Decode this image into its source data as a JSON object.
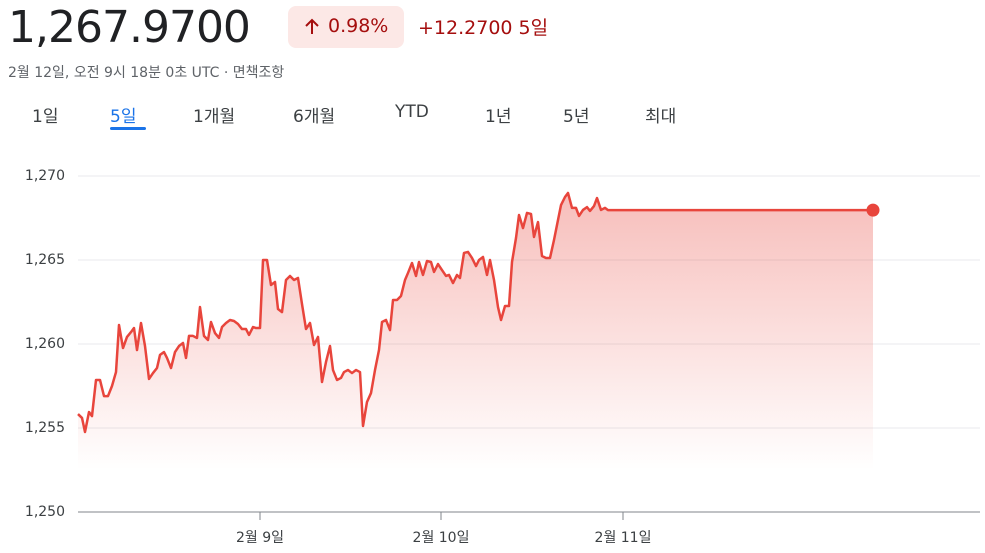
{
  "header": {
    "price": "1,267.9700",
    "change_percent": "0.98%",
    "change": "+12.2700",
    "period": "5일",
    "timestamp": "2월 12일, 오전 9시 18분 0초 UTC · ",
    "disclaimer": "면책조항"
  },
  "tabs": [
    "1일",
    "5일",
    "1개월",
    "6개월",
    "YTD",
    "1년",
    "5년",
    "최대"
  ],
  "chart_data": {
    "type": "line",
    "color": "#e8453c",
    "grid": true,
    "xlim": [
      0,
      902
    ],
    "xticks": [
      {
        "value": 182,
        "label": "2월 9일"
      },
      {
        "value": 363,
        "label": "2월 10일"
      },
      {
        "value": 545,
        "label": "2월 11일"
      }
    ],
    "ylim": [
      1250,
      1271.5
    ],
    "yticks": [
      {
        "value": 1250,
        "label": "1,250"
      },
      {
        "value": 1255,
        "label": "1,255"
      },
      {
        "value": 1260,
        "label": "1,260"
      },
      {
        "value": 1265,
        "label": "1,265"
      },
      {
        "value": 1270,
        "label": "1,270"
      }
    ],
    "x": [
      0,
      4,
      7,
      11,
      14,
      18,
      22,
      26,
      30,
      34,
      38,
      41,
      45,
      49,
      53,
      56,
      59,
      63,
      67,
      71,
      75,
      79,
      82,
      86,
      89,
      93,
      97,
      101,
      105,
      108,
      111,
      115,
      119,
      122,
      126,
      130,
      133,
      137,
      141,
      144,
      148,
      152,
      156,
      160,
      164,
      168,
      171,
      175,
      178,
      182,
      185,
      189,
      193,
      197,
      200,
      204,
      208,
      212,
      216,
      220,
      224,
      228,
      232,
      236,
      240,
      244,
      248,
      252,
      255,
      259,
      263,
      266,
      270,
      274,
      278,
      282,
      285,
      289,
      293,
      297,
      301,
      304,
      308,
      312,
      315,
      319,
      323,
      327,
      330,
      334,
      338,
      341,
      345,
      349,
      353,
      356,
      360,
      364,
      368,
      371,
      375,
      379,
      382,
      386,
      390,
      394,
      398,
      401,
      405,
      409,
      412,
      416,
      420,
      423,
      427,
      431,
      434,
      438,
      441,
      445,
      449,
      453,
      456,
      460,
      464,
      468,
      472,
      476,
      480,
      483,
      487,
      490,
      494,
      498,
      501,
      505,
      509,
      512,
      516,
      519,
      523,
      527,
      530,
      795
    ],
    "values": [
      1255.83,
      1255.6,
      1254.76,
      1255.95,
      1255.71,
      1257.86,
      1257.86,
      1256.9,
      1256.9,
      1257.5,
      1258.33,
      1261.13,
      1259.76,
      1260.42,
      1260.71,
      1260.95,
      1259.64,
      1261.25,
      1259.88,
      1257.92,
      1258.27,
      1258.57,
      1259.35,
      1259.52,
      1259.17,
      1258.57,
      1259.52,
      1259.88,
      1260.06,
      1259.17,
      1260.48,
      1260.48,
      1260.36,
      1262.2,
      1260.48,
      1260.24,
      1261.31,
      1260.65,
      1260.36,
      1261.01,
      1261.25,
      1261.43,
      1261.37,
      1261.19,
      1260.89,
      1260.89,
      1260.54,
      1261.01,
      1260.95,
      1260.95,
      1265,
      1265,
      1263.51,
      1263.69,
      1262.08,
      1261.9,
      1263.81,
      1264.05,
      1263.81,
      1263.93,
      1262.38,
      1260.89,
      1261.25,
      1259.94,
      1260.42,
      1257.74,
      1258.93,
      1259.88,
      1258.45,
      1257.86,
      1257.98,
      1258.33,
      1258.45,
      1258.27,
      1258.45,
      1258.33,
      1255.12,
      1256.55,
      1257.08,
      1258.45,
      1259.64,
      1261.31,
      1261.43,
      1260.83,
      1262.62,
      1262.62,
      1262.86,
      1263.81,
      1264.23,
      1264.82,
      1264.05,
      1264.88,
      1264.11,
      1264.94,
      1264.88,
      1264.29,
      1264.76,
      1264.4,
      1264.05,
      1264.11,
      1263.63,
      1264.11,
      1263.93,
      1265.42,
      1265.48,
      1265.12,
      1264.64,
      1265,
      1265.18,
      1264.11,
      1265,
      1263.81,
      1262.2,
      1261.43,
      1262.26,
      1262.26,
      1264.88,
      1266.31,
      1267.68,
      1266.9,
      1267.8,
      1267.74,
      1266.37,
      1267.26,
      1265.24,
      1265.12,
      1265.12,
      1266.19,
      1267.38,
      1268.27,
      1268.75,
      1268.99,
      1268.1,
      1268.1,
      1267.62,
      1267.98,
      1268.15,
      1267.92,
      1268.21,
      1268.69,
      1267.98,
      1268.1,
      1267.97,
      1267.97
    ]
  }
}
